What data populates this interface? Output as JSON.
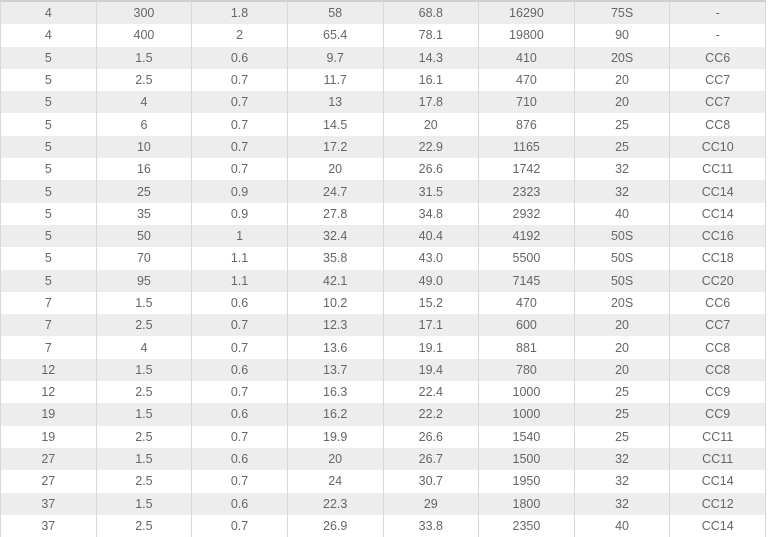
{
  "table": {
    "rows": [
      [
        "4",
        "300",
        "1.8",
        "58",
        "68.8",
        "16290",
        "75S",
        "-"
      ],
      [
        "4",
        "400",
        "2",
        "65.4",
        "78.1",
        "19800",
        "90",
        "-"
      ],
      [
        "5",
        "1.5",
        "0.6",
        "9.7",
        "14.3",
        "410",
        "20S",
        "CC6"
      ],
      [
        "5",
        "2.5",
        "0.7",
        "11.7",
        "16.1",
        "470",
        "20",
        "CC7"
      ],
      [
        "5",
        "4",
        "0.7",
        "13",
        "17.8",
        "710",
        "20",
        "CC7"
      ],
      [
        "5",
        "6",
        "0.7",
        "14.5",
        "20",
        "876",
        "25",
        "CC8"
      ],
      [
        "5",
        "10",
        "0.7",
        "17.2",
        "22.9",
        "1165",
        "25",
        "CC10"
      ],
      [
        "5",
        "16",
        "0.7",
        "20",
        "26.6",
        "1742",
        "32",
        "CC11"
      ],
      [
        "5",
        "25",
        "0.9",
        "24.7",
        "31.5",
        "2323",
        "32",
        "CC14"
      ],
      [
        "5",
        "35",
        "0.9",
        "27.8",
        "34.8",
        "2932",
        "40",
        "CC14"
      ],
      [
        "5",
        "50",
        "1",
        "32.4",
        "40.4",
        "4192",
        "50S",
        "CC16"
      ],
      [
        "5",
        "70",
        "1.1",
        "35.8",
        "43.0",
        "5500",
        "50S",
        "CC18"
      ],
      [
        "5",
        "95",
        "1.1",
        "42.1",
        "49.0",
        "7145",
        "50S",
        "CC20"
      ],
      [
        "7",
        "1.5",
        "0.6",
        "10.2",
        "15.2",
        "470",
        "20S",
        "CC6"
      ],
      [
        "7",
        "2.5",
        "0.7",
        "12.3",
        "17.1",
        "600",
        "20",
        "CC7"
      ],
      [
        "7",
        "4",
        "0.7",
        "13.6",
        "19.1",
        "881",
        "20",
        "CC8"
      ],
      [
        "12",
        "1.5",
        "0.6",
        "13.7",
        "19.4",
        "780",
        "20",
        "CC8"
      ],
      [
        "12",
        "2.5",
        "0.7",
        "16.3",
        "22.4",
        "1000",
        "25",
        "CC9"
      ],
      [
        "19",
        "1.5",
        "0.6",
        "16.2",
        "22.2",
        "1000",
        "25",
        "CC9"
      ],
      [
        "19",
        "2.5",
        "0.7",
        "19.9",
        "26.6",
        "1540",
        "25",
        "CC11"
      ],
      [
        "27",
        "1.5",
        "0.6",
        "20",
        "26.7",
        "1500",
        "32",
        "CC11"
      ],
      [
        "27",
        "2.5",
        "0.7",
        "24",
        "30.7",
        "1950",
        "32",
        "CC14"
      ],
      [
        "37",
        "1.5",
        "0.6",
        "22.3",
        "29",
        "1800",
        "32",
        "CC12"
      ],
      [
        "37",
        "2.5",
        "0.7",
        "26.9",
        "33.8",
        "2350",
        "40",
        "CC14"
      ]
    ]
  }
}
